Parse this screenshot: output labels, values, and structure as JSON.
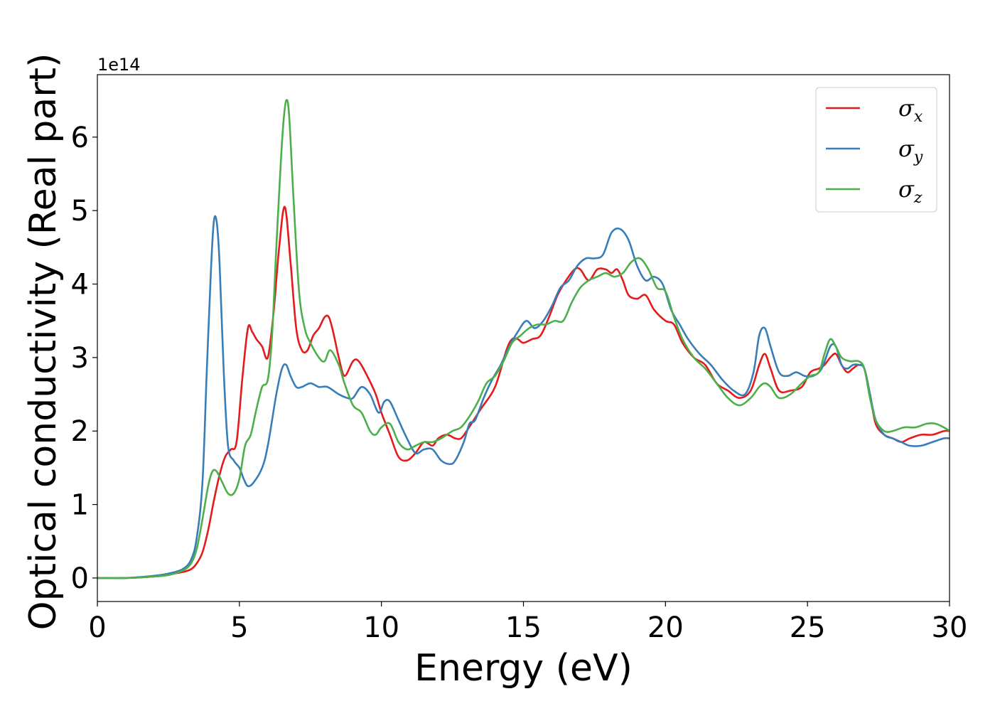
{
  "chart_data": {
    "type": "line",
    "xlabel": "Energy (eV)",
    "ylabel": "Optical conductivity (Real part)",
    "y_offset_label": "1e14",
    "xlim": [
      0,
      30
    ],
    "ylim": [
      -0.32,
      6.85
    ],
    "xticks": [
      0,
      5,
      10,
      15,
      20,
      25,
      30
    ],
    "yticks": [
      0,
      1,
      2,
      3,
      4,
      5,
      6
    ],
    "grid": false,
    "legend_position": "top-right",
    "series": [
      {
        "name": "σx",
        "legend_symbol": "σ",
        "legend_subscript": "x",
        "color": "#e41a1c",
        "x": [
          0,
          1,
          2,
          2.5,
          3,
          3.3,
          3.5,
          3.7,
          3.9,
          4.1,
          4.3,
          4.5,
          4.7,
          4.9,
          5.1,
          5.3,
          5.45,
          5.6,
          5.8,
          6.0,
          6.2,
          6.4,
          6.6,
          6.8,
          7.0,
          7.2,
          7.4,
          7.6,
          7.8,
          8.0,
          8.15,
          8.3,
          8.5,
          8.7,
          9.0,
          9.2,
          9.5,
          9.8,
          10.0,
          10.3,
          10.6,
          10.9,
          11.2,
          11.5,
          11.8,
          12.0,
          12.3,
          12.6,
          12.8,
          13.0,
          13.5,
          14.0,
          14.4,
          14.6,
          14.8,
          15.0,
          15.3,
          15.6,
          15.9,
          16.2,
          16.5,
          16.8,
          17.0,
          17.3,
          17.6,
          17.9,
          18.1,
          18.3,
          18.5,
          18.7,
          19.0,
          19.3,
          19.6,
          20.0,
          20.3,
          20.6,
          21.0,
          21.4,
          21.8,
          22.2,
          22.6,
          23.0,
          23.3,
          23.5,
          23.7,
          24.0,
          24.4,
          24.8,
          25.1,
          25.4,
          25.6,
          25.8,
          26.0,
          26.2,
          26.4,
          26.6,
          26.8,
          27.0,
          27.2,
          27.4,
          27.7,
          28.0,
          28.3,
          28.6,
          29.0,
          29.4,
          29.8,
          30.0
        ],
        "y": [
          0,
          0,
          0.02,
          0.05,
          0.08,
          0.12,
          0.2,
          0.35,
          0.65,
          1.05,
          1.4,
          1.65,
          1.75,
          1.85,
          2.7,
          3.4,
          3.35,
          3.25,
          3.15,
          3.0,
          3.6,
          4.5,
          5.05,
          4.3,
          3.4,
          3.1,
          3.1,
          3.3,
          3.4,
          3.55,
          3.55,
          3.35,
          3.0,
          2.75,
          2.95,
          2.95,
          2.75,
          2.5,
          2.25,
          1.95,
          1.65,
          1.6,
          1.7,
          1.85,
          1.8,
          1.9,
          1.95,
          1.9,
          1.9,
          2.0,
          2.3,
          2.6,
          3.1,
          3.25,
          3.25,
          3.2,
          3.25,
          3.3,
          3.55,
          3.85,
          4.05,
          4.2,
          4.2,
          4.05,
          4.2,
          4.2,
          4.15,
          4.2,
          4.05,
          3.85,
          3.8,
          3.85,
          3.65,
          3.5,
          3.45,
          3.2,
          3.0,
          2.9,
          2.65,
          2.55,
          2.45,
          2.55,
          2.9,
          3.05,
          2.85,
          2.55,
          2.55,
          2.6,
          2.8,
          2.85,
          2.9,
          3.0,
          3.05,
          2.9,
          2.8,
          2.85,
          2.9,
          2.85,
          2.5,
          2.1,
          1.95,
          1.9,
          1.85,
          1.9,
          1.95,
          1.95,
          2.0,
          2.0
        ]
      },
      {
        "name": "σy",
        "legend_symbol": "σ",
        "legend_subscript": "y",
        "color": "#377eb8",
        "x": [
          0,
          1,
          2,
          2.5,
          3,
          3.3,
          3.5,
          3.7,
          3.85,
          4.0,
          4.1,
          4.2,
          4.3,
          4.45,
          4.6,
          4.8,
          5.0,
          5.15,
          5.3,
          5.5,
          5.8,
          6.0,
          6.3,
          6.5,
          6.65,
          6.8,
          7.0,
          7.2,
          7.5,
          7.8,
          8.1,
          8.5,
          8.8,
          9.0,
          9.3,
          9.6,
          9.9,
          10.1,
          10.3,
          10.6,
          10.9,
          11.2,
          11.5,
          11.8,
          12.1,
          12.4,
          12.6,
          12.9,
          13.1,
          13.3,
          13.6,
          13.9,
          14.2,
          14.5,
          14.8,
          15.1,
          15.4,
          15.7,
          16.0,
          16.3,
          16.6,
          16.9,
          17.2,
          17.5,
          17.8,
          18.1,
          18.4,
          18.7,
          19.0,
          19.3,
          19.6,
          19.9,
          20.2,
          20.5,
          20.8,
          21.2,
          21.6,
          22.0,
          22.4,
          22.8,
          23.1,
          23.3,
          23.5,
          23.7,
          24.0,
          24.3,
          24.6,
          24.9,
          25.2,
          25.5,
          25.8,
          26.0,
          26.2,
          26.4,
          26.6,
          26.8,
          27.0,
          27.2,
          27.4,
          27.7,
          28.0,
          28.3,
          28.6,
          29.0,
          29.4,
          29.8,
          30.0
        ],
        "y": [
          0,
          0,
          0.03,
          0.06,
          0.12,
          0.25,
          0.55,
          1.3,
          2.8,
          4.2,
          4.85,
          4.85,
          4.3,
          2.8,
          1.8,
          1.6,
          1.5,
          1.35,
          1.25,
          1.3,
          1.5,
          1.8,
          2.5,
          2.85,
          2.9,
          2.75,
          2.6,
          2.6,
          2.65,
          2.6,
          2.6,
          2.5,
          2.45,
          2.45,
          2.6,
          2.5,
          2.25,
          2.4,
          2.4,
          2.15,
          1.9,
          1.7,
          1.75,
          1.75,
          1.6,
          1.55,
          1.6,
          1.85,
          2.1,
          2.15,
          2.45,
          2.7,
          2.9,
          3.15,
          3.35,
          3.5,
          3.4,
          3.5,
          3.7,
          3.95,
          4.05,
          4.25,
          4.35,
          4.35,
          4.4,
          4.7,
          4.75,
          4.6,
          4.25,
          4.05,
          4.1,
          4.0,
          3.65,
          3.45,
          3.25,
          3.05,
          2.9,
          2.7,
          2.55,
          2.5,
          2.8,
          3.3,
          3.4,
          3.15,
          2.8,
          2.75,
          2.8,
          2.75,
          2.75,
          2.85,
          3.15,
          3.15,
          2.9,
          2.85,
          2.9,
          2.9,
          2.85,
          2.5,
          2.15,
          1.95,
          1.9,
          1.85,
          1.8,
          1.8,
          1.85,
          1.9,
          1.9
        ]
      },
      {
        "name": "σz",
        "legend_symbol": "σ",
        "legend_subscript": "z",
        "color": "#4daf4a",
        "x": [
          0,
          1,
          2,
          2.5,
          3,
          3.3,
          3.5,
          3.7,
          3.9,
          4.05,
          4.2,
          4.4,
          4.6,
          4.8,
          5.0,
          5.2,
          5.4,
          5.6,
          5.8,
          6.0,
          6.15,
          6.3,
          6.45,
          6.55,
          6.65,
          6.75,
          6.9,
          7.1,
          7.3,
          7.5,
          7.8,
          8.0,
          8.2,
          8.5,
          8.7,
          9.0,
          9.3,
          9.6,
          9.8,
          10.0,
          10.3,
          10.6,
          10.9,
          11.2,
          11.5,
          11.8,
          12.1,
          12.5,
          12.8,
          13.1,
          13.4,
          13.7,
          14.0,
          14.3,
          14.6,
          14.9,
          15.2,
          15.5,
          15.8,
          16.1,
          16.4,
          16.7,
          17.0,
          17.3,
          17.6,
          17.9,
          18.2,
          18.5,
          18.8,
          19.1,
          19.4,
          19.7,
          20.0,
          20.3,
          20.6,
          21.0,
          21.4,
          21.8,
          22.2,
          22.6,
          23.0,
          23.3,
          23.5,
          23.7,
          24.0,
          24.4,
          24.8,
          25.1,
          25.4,
          25.6,
          25.8,
          26.0,
          26.2,
          26.5,
          26.8,
          27.0,
          27.2,
          27.4,
          27.7,
          28.0,
          28.4,
          28.8,
          29.2,
          29.5,
          29.8,
          30.0
        ],
        "y": [
          0,
          0,
          0.02,
          0.04,
          0.1,
          0.2,
          0.4,
          0.8,
          1.25,
          1.45,
          1.45,
          1.3,
          1.15,
          1.15,
          1.35,
          1.8,
          1.95,
          2.3,
          2.6,
          2.7,
          3.3,
          4.5,
          5.6,
          6.2,
          6.5,
          6.3,
          5.2,
          3.9,
          3.4,
          3.2,
          3.0,
          2.95,
          3.1,
          2.9,
          2.65,
          2.35,
          2.25,
          2.0,
          1.95,
          2.05,
          2.1,
          1.85,
          1.75,
          1.8,
          1.85,
          1.85,
          1.9,
          2.0,
          2.05,
          2.2,
          2.4,
          2.65,
          2.75,
          2.95,
          3.2,
          3.3,
          3.4,
          3.45,
          3.45,
          3.5,
          3.5,
          3.75,
          3.95,
          4.05,
          4.1,
          4.15,
          4.1,
          4.15,
          4.3,
          4.35,
          4.2,
          3.95,
          3.9,
          3.55,
          3.25,
          3.0,
          2.85,
          2.65,
          2.45,
          2.35,
          2.45,
          2.6,
          2.65,
          2.6,
          2.45,
          2.5,
          2.65,
          2.75,
          2.8,
          3.05,
          3.25,
          3.15,
          3.0,
          2.95,
          2.95,
          2.85,
          2.45,
          2.15,
          2.0,
          2.0,
          2.05,
          2.05,
          2.1,
          2.1,
          2.05,
          2.0
        ]
      }
    ]
  }
}
